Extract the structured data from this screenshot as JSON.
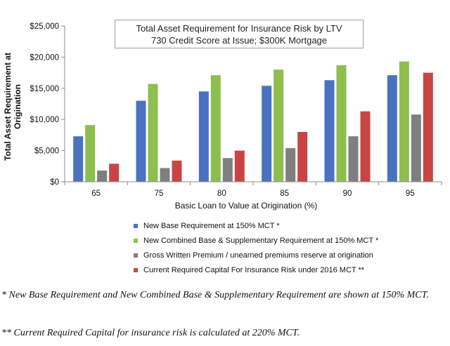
{
  "chart_data": {
    "type": "bar",
    "title": "Total Asset Requirement for Insurance Risk by LTV",
    "subtitle": "730 Credit Score at Issue; $300K Mortgage",
    "xlabel": "Basic Loan to Value at Origination (%)",
    "ylabel": "Total Asset Requirement at Origination",
    "categories": [
      "65",
      "75",
      "80",
      "85",
      "90",
      "95"
    ],
    "ylim": [
      0,
      25000
    ],
    "yticks": [
      0,
      5000,
      10000,
      15000,
      20000,
      25000
    ],
    "ytick_labels": [
      "$0",
      "$5,000",
      "$10,000",
      "$15,000",
      "$20,000",
      "$25,000"
    ],
    "grid": false,
    "legend_position": "bottom",
    "series": [
      {
        "name": "New Base Requirement at 150% MCT *",
        "color": "#4a72c0",
        "values": [
          7300,
          13000,
          14500,
          15400,
          16300,
          17100
        ]
      },
      {
        "name": "New Combined Base & Supplementary Requirement at 150% MCT *",
        "color": "#8dbe4e",
        "values": [
          9100,
          15700,
          17100,
          18000,
          18700,
          19300
        ]
      },
      {
        "name": "Gross Written Premium / unearned premiums reserve at origination",
        "color": "#7f7f7f",
        "values": [
          1800,
          2200,
          3800,
          5400,
          7300,
          10800
        ]
      },
      {
        "name": "Current Required Capital For Insurance Risk under 2016 MCT **",
        "color": "#c94545",
        "values": [
          2900,
          3400,
          5000,
          8000,
          11300,
          17500
        ]
      }
    ]
  },
  "footnotes": [
    "* New Base Requirement and New Combined Base & Supplementary Requirement are shown at 150% MCT.",
    "** Current Required Capital for insurance risk is calculated at 220% MCT."
  ]
}
